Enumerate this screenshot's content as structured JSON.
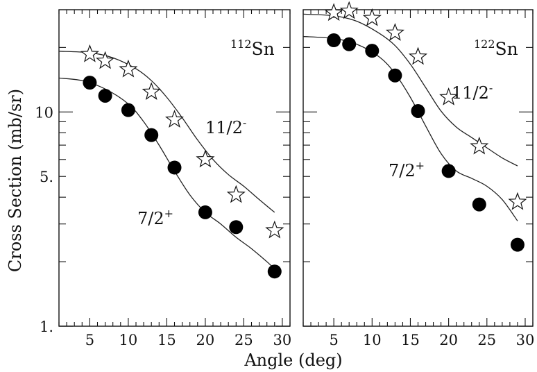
{
  "chart_data": [
    {
      "type": "scatter",
      "title": "",
      "xlabel": "Angle (deg)",
      "ylabel": "Cross Section (mb/sr)",
      "xlim": [
        1,
        31
      ],
      "ylim": [
        1,
        30
      ],
      "yscale": "log",
      "grid": false,
      "x_ticks": [
        5,
        10,
        15,
        20,
        25,
        30
      ],
      "y_ticks": [
        {
          "value": 1,
          "label": "1."
        },
        {
          "value": 5,
          "label": "5."
        },
        {
          "value": 10,
          "label": "10"
        }
      ],
      "annotations": [
        {
          "text": "Sn",
          "superscript": "112"
        },
        {
          "text": "11/2",
          "superscript": "-"
        },
        {
          "text": "7/2",
          "superscript": "+"
        }
      ],
      "series": [
        {
          "name": "11/2-",
          "marker": "open-star",
          "x": [
            5,
            7,
            10,
            13,
            16,
            20,
            24,
            29
          ],
          "y": [
            18.6,
            17.3,
            15.8,
            12.4,
            9.2,
            6.0,
            4.1,
            2.8
          ],
          "curve": {
            "x": [
              1,
              5,
              8,
              11,
              13,
              15,
              17,
              19,
              21,
              23,
              25,
              27,
              29
            ],
            "y": [
              19.2,
              18.9,
              17.9,
              15.9,
              14.0,
              11.7,
              9.4,
              7.4,
              6.0,
              5.1,
              4.5,
              3.9,
              3.4
            ]
          }
        },
        {
          "name": "7/2+",
          "marker": "filled-circle",
          "x": [
            5,
            7,
            10,
            13,
            16,
            20,
            24,
            29
          ],
          "y": [
            13.7,
            11.9,
            10.2,
            7.8,
            5.5,
            3.4,
            2.9,
            1.8
          ],
          "curve": {
            "x": [
              1,
              4,
              7,
              10,
              12,
              14,
              16,
              18,
              20,
              22,
              24,
              26,
              28,
              29
            ],
            "y": [
              14.4,
              14.0,
              12.8,
              10.9,
              9.0,
              7.0,
              5.3,
              4.1,
              3.4,
              3.0,
              2.6,
              2.3,
              2.0,
              1.85
            ]
          }
        }
      ]
    },
    {
      "type": "scatter",
      "title": "",
      "xlabel": "Angle (deg)",
      "ylabel": "",
      "xlim": [
        1,
        31
      ],
      "ylim": [
        1,
        30
      ],
      "yscale": "log",
      "grid": false,
      "x_ticks": [
        5,
        10,
        15,
        20,
        25,
        30
      ],
      "annotations": [
        {
          "text": "Sn",
          "superscript": "122"
        },
        {
          "text": "11/2",
          "superscript": "-"
        },
        {
          "text": "7/2",
          "superscript": "+"
        }
      ],
      "series": [
        {
          "name": "11/2-",
          "marker": "open-star",
          "x": [
            5,
            7,
            10,
            13,
            16,
            20,
            24,
            29
          ],
          "y": [
            29.0,
            29.6,
            27.4,
            23.4,
            18.1,
            11.7,
            6.9,
            3.8
          ],
          "curve": {
            "x": [
              1,
              5,
              8,
              11,
              13,
              15,
              17,
              19,
              21,
              23,
              25,
              27,
              29
            ],
            "y": [
              28.6,
              28.1,
              26.5,
              23.2,
              20.4,
              16.7,
              13.0,
              10.1,
              8.5,
              7.6,
              6.8,
              6.1,
              5.6
            ]
          }
        },
        {
          "name": "7/2+",
          "marker": "filled-circle",
          "x": [
            5,
            7,
            10,
            13,
            16,
            20,
            24,
            29
          ],
          "y": [
            21.6,
            20.7,
            19.3,
            14.8,
            10.1,
            5.3,
            3.7,
            2.4
          ],
          "curve": {
            "x": [
              1,
              5,
              8,
              11,
              13,
              15,
              17,
              19,
              21,
              23,
              25,
              27,
              29
            ],
            "y": [
              22.5,
              22.0,
              20.7,
              18.0,
              15.1,
              11.7,
              8.6,
              6.4,
              5.3,
              4.9,
              4.5,
              3.9,
              3.1
            ]
          }
        }
      ]
    }
  ]
}
